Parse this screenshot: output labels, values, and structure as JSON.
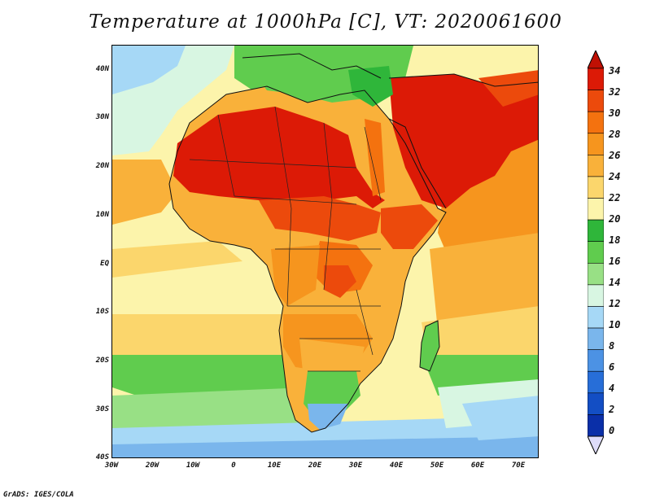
{
  "title": "Temperature at 1000hPa [C], VT: 2020061600",
  "footer": "GrADS: IGES/COLA",
  "y_axis_labels": [
    "40N",
    "30N",
    "20N",
    "10N",
    "EQ",
    "10S",
    "20S",
    "30S",
    "40S"
  ],
  "x_axis_labels": [
    "30W",
    "20W",
    "10W",
    "0",
    "10E",
    "20E",
    "30E",
    "40E",
    "50E",
    "60E",
    "70E"
  ],
  "colorbar": {
    "labels": [
      "34",
      "32",
      "30",
      "28",
      "26",
      "24",
      "22",
      "20",
      "18",
      "16",
      "14",
      "12",
      "10",
      "8",
      "6",
      "4",
      "2",
      "0"
    ],
    "colors": [
      "#dc1a06",
      "#ec4a0c",
      "#f4720f",
      "#f6951e",
      "#f9b13a",
      "#fbd66c",
      "#fcf4ab",
      "#2fb63a",
      "#60cc4e",
      "#98e085",
      "#d8f6e2",
      "#a6d8f6",
      "#7ab6ec",
      "#4c92e4",
      "#276ed8",
      "#134ec4",
      "#0a2fa8",
      "#0a1872"
    ],
    "top_cap": "#c01004",
    "bottom_cap": "#dedcfa"
  },
  "map_extent": {
    "lon_min": -30,
    "lon_max": 75,
    "lat_min": -40,
    "lat_max": 45
  }
}
